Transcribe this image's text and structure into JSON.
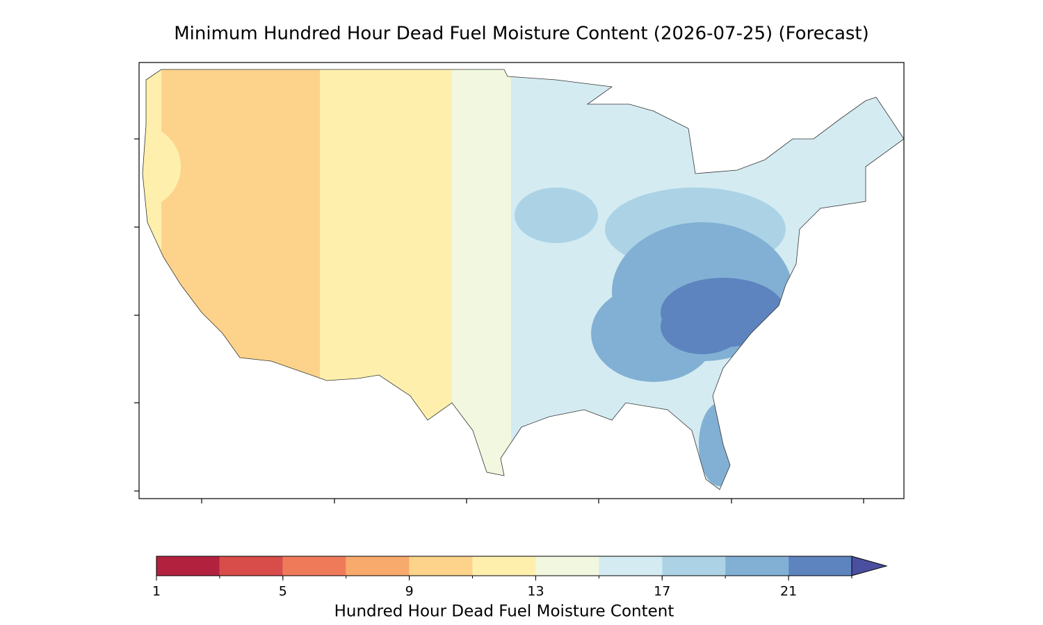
{
  "chart_data": {
    "type": "contour_map",
    "title": "Minimum Hundred Hour Dead Fuel Moisture Content (2026-07-25) (Forecast)",
    "colorbar": {
      "label": "Hundred Hour Dead Fuel Moisture Content",
      "levels": [
        1,
        3,
        5,
        7,
        9,
        11,
        13,
        15,
        17,
        19,
        21,
        23
      ],
      "colors": [
        "#b2223f",
        "#d84c4a",
        "#ef7a5a",
        "#f8a96c",
        "#fdd38b",
        "#fef0ac",
        "#f1f8df",
        "#d4ebf2",
        "#abd3e5",
        "#82b0d4",
        "#5d84be"
      ],
      "extend_color": "#4b4f9f",
      "lim": [
        1,
        23
      ],
      "ticks": [
        1,
        5,
        9,
        13,
        17,
        21
      ]
    }
  }
}
